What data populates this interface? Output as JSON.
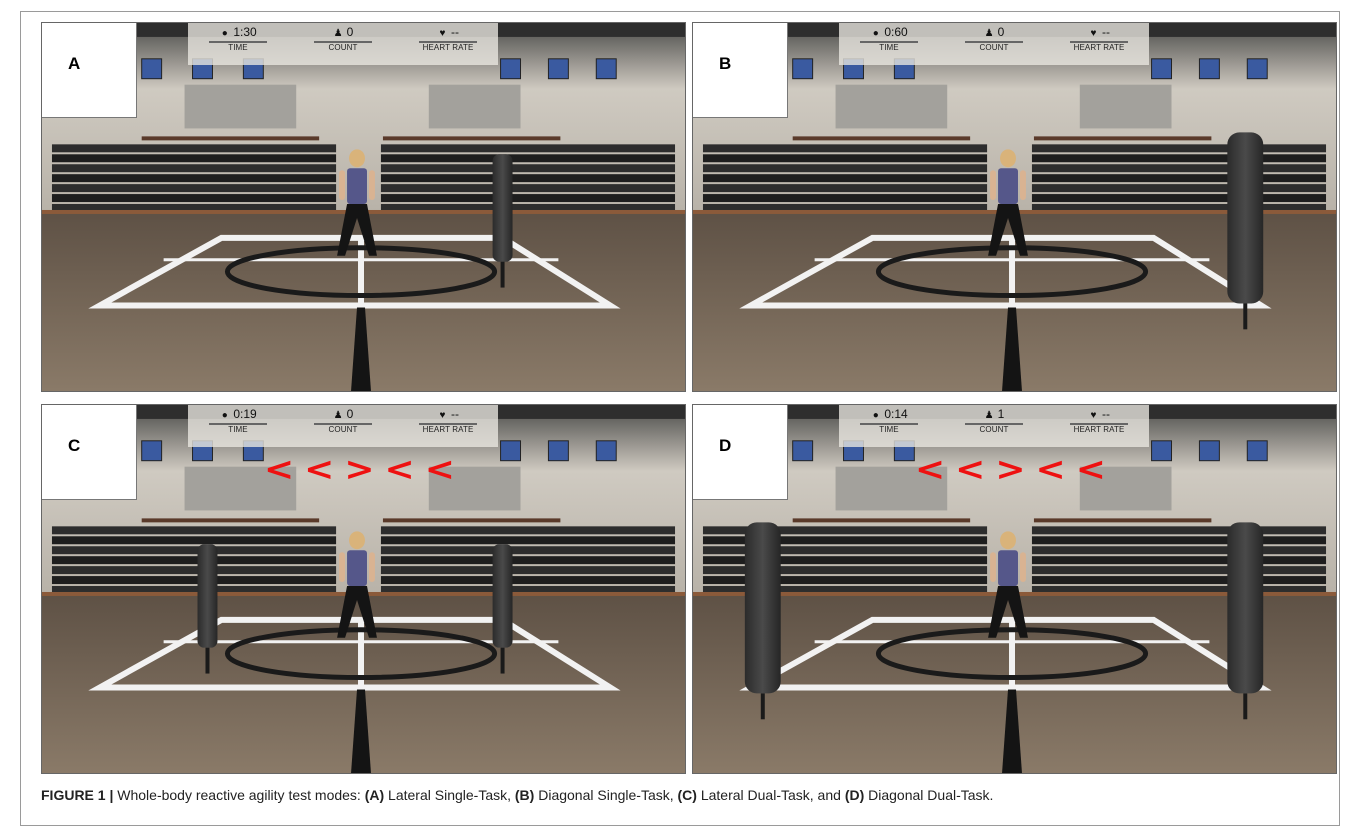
{
  "panels": {
    "A": {
      "label": "A",
      "hud": {
        "time_value": "1:30",
        "time_label": "TIME",
        "count_value": "0",
        "count_label": "COUNT",
        "heart_value": "--",
        "heart_label": "HEART RATE"
      },
      "arrows": []
    },
    "B": {
      "label": "B",
      "hud": {
        "time_value": "0:60",
        "time_label": "TIME",
        "count_value": "0",
        "count_label": "COUNT",
        "heart_value": "--",
        "heart_label": "HEART RATE"
      },
      "arrows": []
    },
    "C": {
      "label": "C",
      "hud": {
        "time_value": "0:19",
        "time_label": "TIME",
        "count_value": "0",
        "count_label": "COUNT",
        "heart_value": "--",
        "heart_label": "HEART RATE"
      },
      "arrows": [
        "<",
        "<",
        ">",
        "<",
        "<"
      ]
    },
    "D": {
      "label": "D",
      "hud": {
        "time_value": "0:14",
        "time_label": "TIME",
        "count_value": "1",
        "count_label": "COUNT",
        "heart_value": "--",
        "heart_label": "HEART RATE"
      },
      "arrows": [
        "<",
        "<",
        ">",
        "<",
        "<"
      ]
    }
  },
  "icons": {
    "time": "clock-icon",
    "count": "person-icon",
    "heart": "heart-icon"
  },
  "colors": {
    "arrow": "#ee1111",
    "floor": "#7b6e5f",
    "court_line": "#f2f2f2"
  },
  "caption": {
    "figure_label": "FIGURE 1 |",
    "intro": " Whole-body reactive agility test modes: ",
    "a_label": "(A)",
    "a_text": " Lateral Single-Task, ",
    "b_label": "(B)",
    "b_text": " Diagonal Single-Task, ",
    "c_label": "(C)",
    "c_text": " Lateral Dual-Task, and ",
    "d_label": "(D)",
    "d_text": " Diagonal Dual-Task."
  }
}
